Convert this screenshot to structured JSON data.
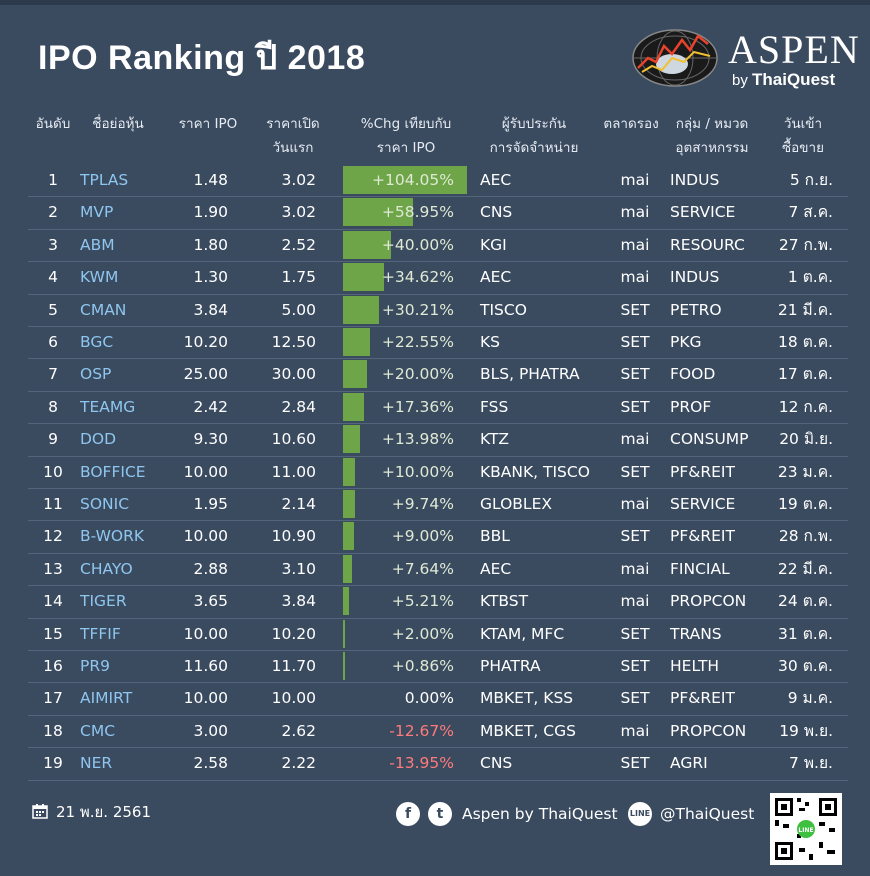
{
  "title": "IPO Ranking ปี 2018",
  "brand": {
    "name": "ASPEN",
    "by": "by",
    "by_company": "ThaiQuest"
  },
  "headers": {
    "rank": "อันดับ",
    "symbol": "ชื่อย่อหุ้น",
    "ipo_price": "ราคา IPO",
    "open_line1": "ราคาเปิด",
    "open_line2": "วันแรก",
    "chg_line1": "%Chg เทียบกับ",
    "chg_line2": "ราคา IPO",
    "uw_line1": "ผู้รับประกัน",
    "uw_line2": "การจัดจำหน่าย",
    "market": "ตลาดรอง",
    "ind_line1": "กลุ่ม / หมวด",
    "ind_line2": "อุตสาหกรรม",
    "date_line1": "วันเข้า",
    "date_line2": "ซื้อขาย"
  },
  "chart_data": {
    "type": "table",
    "title": "IPO Ranking ปี 2018",
    "bar_column": "%Chg เทียบกับราคา IPO",
    "bar_max": 104.05,
    "rows": [
      {
        "rank": "1",
        "symbol": "TPLAS",
        "ipo": "1.48",
        "open": "3.02",
        "chg": 104.05,
        "chg_label": "+104.05%",
        "uw": "AEC",
        "market": "mai",
        "industry": "INDUS",
        "date": "5 ก.ย."
      },
      {
        "rank": "2",
        "symbol": "MVP",
        "ipo": "1.90",
        "open": "3.02",
        "chg": 58.95,
        "chg_label": "+58.95%",
        "uw": "CNS",
        "market": "mai",
        "industry": "SERVICE",
        "date": "7 ส.ค."
      },
      {
        "rank": "3",
        "symbol": "ABM",
        "ipo": "1.80",
        "open": "2.52",
        "chg": 40.0,
        "chg_label": "+40.00%",
        "uw": "KGI",
        "market": "mai",
        "industry": "RESOURC",
        "date": "27 ก.พ."
      },
      {
        "rank": "4",
        "symbol": "KWM",
        "ipo": "1.30",
        "open": "1.75",
        "chg": 34.62,
        "chg_label": "+34.62%",
        "uw": "AEC",
        "market": "mai",
        "industry": "INDUS",
        "date": "1 ต.ค."
      },
      {
        "rank": "5",
        "symbol": "CMAN",
        "ipo": "3.84",
        "open": "5.00",
        "chg": 30.21,
        "chg_label": "+30.21%",
        "uw": "TISCO",
        "market": "SET",
        "industry": "PETRO",
        "date": "21 มี.ค."
      },
      {
        "rank": "6",
        "symbol": "BGC",
        "ipo": "10.20",
        "open": "12.50",
        "chg": 22.55,
        "chg_label": "+22.55%",
        "uw": "KS",
        "market": "SET",
        "industry": "PKG",
        "date": "18 ต.ค."
      },
      {
        "rank": "7",
        "symbol": "OSP",
        "ipo": "25.00",
        "open": "30.00",
        "chg": 20.0,
        "chg_label": "+20.00%",
        "uw": "BLS, PHATRA",
        "market": "SET",
        "industry": "FOOD",
        "date": "17 ต.ค."
      },
      {
        "rank": "8",
        "symbol": "TEAMG",
        "ipo": "2.42",
        "open": "2.84",
        "chg": 17.36,
        "chg_label": "+17.36%",
        "uw": "FSS",
        "market": "SET",
        "industry": "PROF",
        "date": "12 ก.ค."
      },
      {
        "rank": "9",
        "symbol": "DOD",
        "ipo": "9.30",
        "open": "10.60",
        "chg": 13.98,
        "chg_label": "+13.98%",
        "uw": "KTZ",
        "market": "mai",
        "industry": "CONSUMP",
        "date": "20 มิ.ย."
      },
      {
        "rank": "10",
        "symbol": "BOFFICE",
        "ipo": "10.00",
        "open": "11.00",
        "chg": 10.0,
        "chg_label": "+10.00%",
        "uw": "KBANK, TISCO",
        "market": "SET",
        "industry": "PF&REIT",
        "date": "23 ม.ค."
      },
      {
        "rank": "11",
        "symbol": "SONIC",
        "ipo": "1.95",
        "open": "2.14",
        "chg": 9.74,
        "chg_label": "+9.74%",
        "uw": "GLOBLEX",
        "market": "mai",
        "industry": "SERVICE",
        "date": "19 ต.ค."
      },
      {
        "rank": "12",
        "symbol": "B-WORK",
        "ipo": "10.00",
        "open": "10.90",
        "chg": 9.0,
        "chg_label": "+9.00%",
        "uw": "BBL",
        "market": "SET",
        "industry": "PF&REIT",
        "date": "28 ก.พ."
      },
      {
        "rank": "13",
        "symbol": "CHAYO",
        "ipo": "2.88",
        "open": "3.10",
        "chg": 7.64,
        "chg_label": "+7.64%",
        "uw": "AEC",
        "market": "mai",
        "industry": "FINCIAL",
        "date": "22 มี.ค."
      },
      {
        "rank": "14",
        "symbol": "TIGER",
        "ipo": "3.65",
        "open": "3.84",
        "chg": 5.21,
        "chg_label": "+5.21%",
        "uw": "KTBST",
        "market": "mai",
        "industry": "PROPCON",
        "date": "24 ต.ค."
      },
      {
        "rank": "15",
        "symbol": "TFFIF",
        "ipo": "10.00",
        "open": "10.20",
        "chg": 2.0,
        "chg_label": "+2.00%",
        "uw": "KTAM, MFC",
        "market": "SET",
        "industry": "TRANS",
        "date": "31 ต.ค."
      },
      {
        "rank": "16",
        "symbol": "PR9",
        "ipo": "11.60",
        "open": "11.70",
        "chg": 0.86,
        "chg_label": "+0.86%",
        "uw": "PHATRA",
        "market": "SET",
        "industry": "HELTH",
        "date": "30 ต.ค."
      },
      {
        "rank": "17",
        "symbol": "AIMIRT",
        "ipo": "10.00",
        "open": "10.00",
        "chg": 0.0,
        "chg_label": "0.00%",
        "uw": "MBKET, KSS",
        "market": "SET",
        "industry": "PF&REIT",
        "date": "9 ม.ค."
      },
      {
        "rank": "18",
        "symbol": "CMC",
        "ipo": "3.00",
        "open": "2.62",
        "chg": -12.67,
        "chg_label": "-12.67%",
        "uw": "MBKET, CGS",
        "market": "mai",
        "industry": "PROPCON",
        "date": "19 พ.ย."
      },
      {
        "rank": "19",
        "symbol": "NER",
        "ipo": "2.58",
        "open": "2.22",
        "chg": -13.95,
        "chg_label": "-13.95%",
        "uw": "CNS",
        "market": "SET",
        "industry": "AGRI",
        "date": "7 พ.ย."
      }
    ]
  },
  "footer": {
    "date": "21 พ.ย. 2561",
    "calendar_icon": "calendar-icon",
    "facebook_icon": "facebook-icon",
    "twitter_icon": "twitter-icon",
    "social_name": "Aspen by ThaiQuest",
    "line_icon": "line-icon",
    "line_id": "@ThaiQuest"
  },
  "colors": {
    "background": "#3a4a5f",
    "bar": "#6ea548",
    "symbol": "#8fc6ef",
    "negative": "#ff7b7b"
  }
}
